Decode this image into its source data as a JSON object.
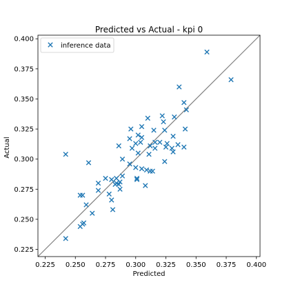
{
  "chart_data": {
    "type": "scatter",
    "title": "Predicted vs Actual - kpi 0",
    "xlabel": "Predicted",
    "ylabel": "Actual",
    "xlim": [
      0.219,
      0.403
    ],
    "ylim": [
      0.219,
      0.403
    ],
    "xticks": [
      "0.225",
      "0.250",
      "0.275",
      "0.300",
      "0.325",
      "0.350",
      "0.375",
      "0.400"
    ],
    "yticks": [
      "0.225",
      "0.250",
      "0.275",
      "0.300",
      "0.325",
      "0.350",
      "0.375",
      "0.400"
    ],
    "grid": false,
    "legend": {
      "placement": "upper-left",
      "entries": [
        "inference data"
      ]
    },
    "reference_line": "y = x",
    "colors": {
      "marker": "#1f77b4",
      "reference_line": "#808080"
    },
    "series": [
      {
        "name": "inference data",
        "marker": "x",
        "points": [
          [
            0.359,
            0.389
          ],
          [
            0.379,
            0.366
          ],
          [
            0.242,
            0.304
          ],
          [
            0.242,
            0.234
          ],
          [
            0.261,
            0.297
          ],
          [
            0.336,
            0.36
          ],
          [
            0.34,
            0.347
          ],
          [
            0.342,
            0.341
          ],
          [
            0.332,
            0.335
          ],
          [
            0.322,
            0.336
          ],
          [
            0.31,
            0.334
          ],
          [
            0.323,
            0.331
          ],
          [
            0.305,
            0.327
          ],
          [
            0.324,
            0.324
          ],
          [
            0.341,
            0.325
          ],
          [
            0.296,
            0.325
          ],
          [
            0.315,
            0.324
          ],
          [
            0.331,
            0.319
          ],
          [
            0.302,
            0.32
          ],
          [
            0.305,
            0.318
          ],
          [
            0.295,
            0.317
          ],
          [
            0.3,
            0.313
          ],
          [
            0.304,
            0.314
          ],
          [
            0.316,
            0.314
          ],
          [
            0.32,
            0.314
          ],
          [
            0.326,
            0.313
          ],
          [
            0.335,
            0.312
          ],
          [
            0.34,
            0.31
          ],
          [
            0.33,
            0.309
          ],
          [
            0.325,
            0.31
          ],
          [
            0.312,
            0.311
          ],
          [
            0.316,
            0.309
          ],
          [
            0.286,
            0.311
          ],
          [
            0.297,
            0.309
          ],
          [
            0.331,
            0.306
          ],
          [
            0.311,
            0.304
          ],
          [
            0.302,
            0.305
          ],
          [
            0.289,
            0.3
          ],
          [
            0.324,
            0.298
          ],
          [
            0.295,
            0.296
          ],
          [
            0.305,
            0.292
          ],
          [
            0.3,
            0.293
          ],
          [
            0.312,
            0.29
          ],
          [
            0.309,
            0.291
          ],
          [
            0.314,
            0.29
          ],
          [
            0.28,
            0.283
          ],
          [
            0.284,
            0.284
          ],
          [
            0.289,
            0.286
          ],
          [
            0.287,
            0.281
          ],
          [
            0.301,
            0.284
          ],
          [
            0.301,
            0.283
          ],
          [
            0.284,
            0.28
          ],
          [
            0.286,
            0.279
          ],
          [
            0.283,
            0.279
          ],
          [
            0.269,
            0.28
          ],
          [
            0.275,
            0.284
          ],
          [
            0.308,
            0.278
          ],
          [
            0.287,
            0.275
          ],
          [
            0.269,
            0.274
          ],
          [
            0.278,
            0.271
          ],
          [
            0.256,
            0.27
          ],
          [
            0.254,
            0.27
          ],
          [
            0.28,
            0.266
          ],
          [
            0.259,
            0.262
          ],
          [
            0.281,
            0.258
          ],
          [
            0.264,
            0.255
          ],
          [
            0.257,
            0.247
          ],
          [
            0.256,
            0.246
          ],
          [
            0.254,
            0.244
          ]
        ]
      }
    ]
  }
}
